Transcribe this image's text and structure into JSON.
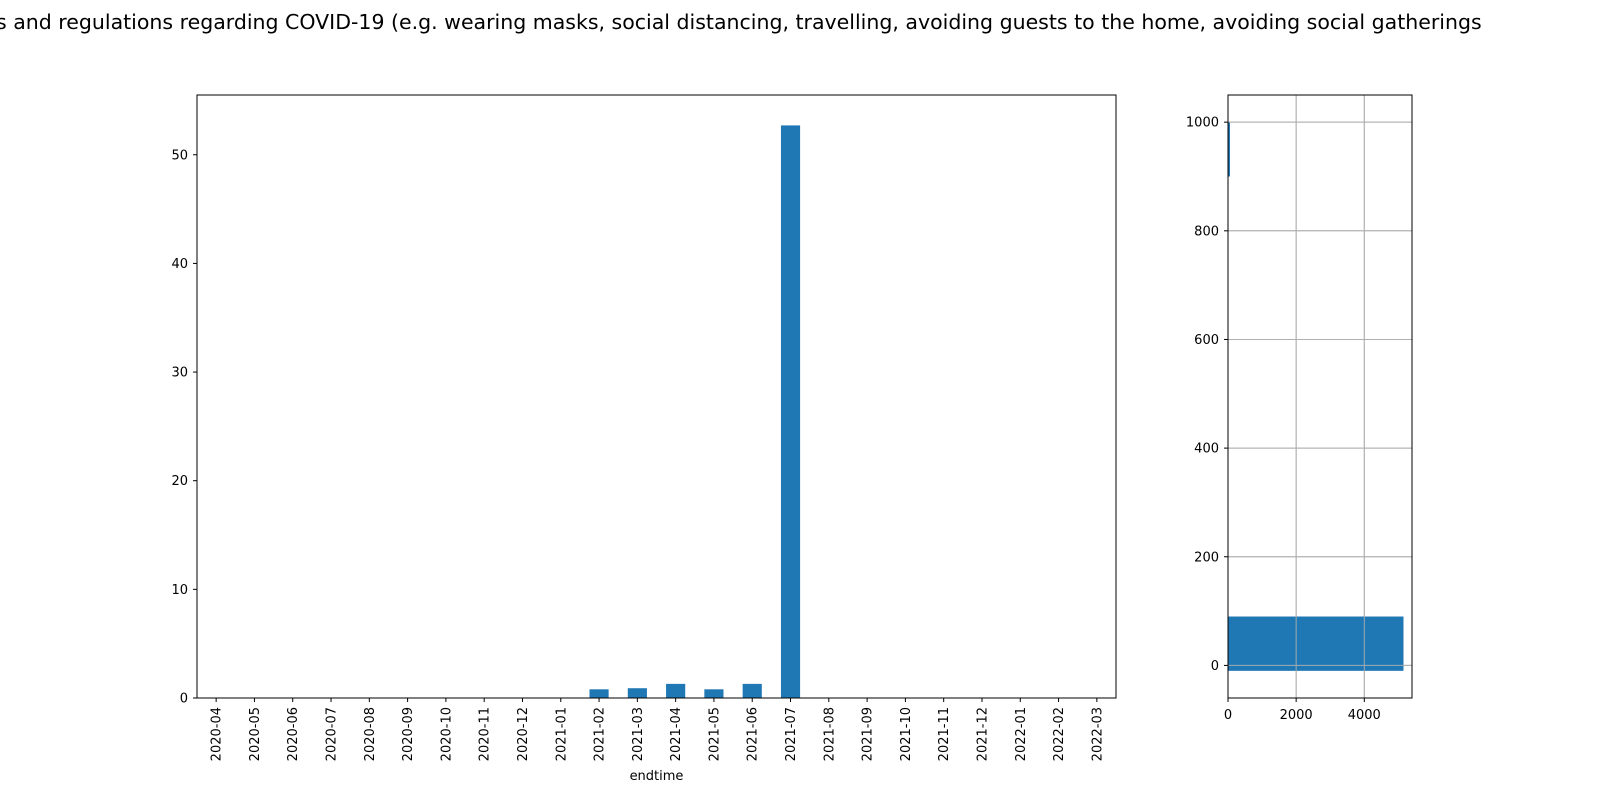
{
  "figure": {
    "title": "s and regulations regarding COVID-19 (e.g. wearing masks, social distancing, travelling, avoiding guests to the home, avoiding social gatherings"
  },
  "chart_data": [
    {
      "type": "bar",
      "xlabel": "endtime",
      "ylabel": "",
      "categories": [
        "2020-04",
        "2020-05",
        "2020-06",
        "2020-07",
        "2020-08",
        "2020-09",
        "2020-10",
        "2020-11",
        "2020-12",
        "2021-01",
        "2021-02",
        "2021-03",
        "2021-04",
        "2021-05",
        "2021-06",
        "2021-07",
        "2021-08",
        "2021-09",
        "2021-10",
        "2021-11",
        "2021-12",
        "2022-01",
        "2022-02",
        "2022-03"
      ],
      "values": [
        0,
        0,
        0,
        0,
        0,
        0,
        0,
        0,
        0,
        0,
        0.8,
        0.9,
        1.3,
        0.8,
        1.3,
        52.7,
        0,
        0,
        0,
        0,
        0,
        0,
        0,
        0
      ],
      "ylim": [
        0,
        55.5
      ],
      "yticks": [
        0,
        10,
        20,
        30,
        40,
        50
      ],
      "grid": false,
      "color": "#1f77b4"
    },
    {
      "type": "bar",
      "orientation": "horizontal",
      "xlabel": "",
      "ylabel": "",
      "bars": [
        {
          "y": 40,
          "height": 100,
          "value": 5150
        },
        {
          "y": 950,
          "height": 100,
          "value": 5
        }
      ],
      "xlim": [
        0,
        5400
      ],
      "ylim": [
        -60,
        1050
      ],
      "xticks": [
        0,
        2000,
        4000
      ],
      "yticks": [
        0,
        200,
        400,
        600,
        800,
        1000
      ],
      "grid": true,
      "color": "#1f77b4"
    }
  ]
}
